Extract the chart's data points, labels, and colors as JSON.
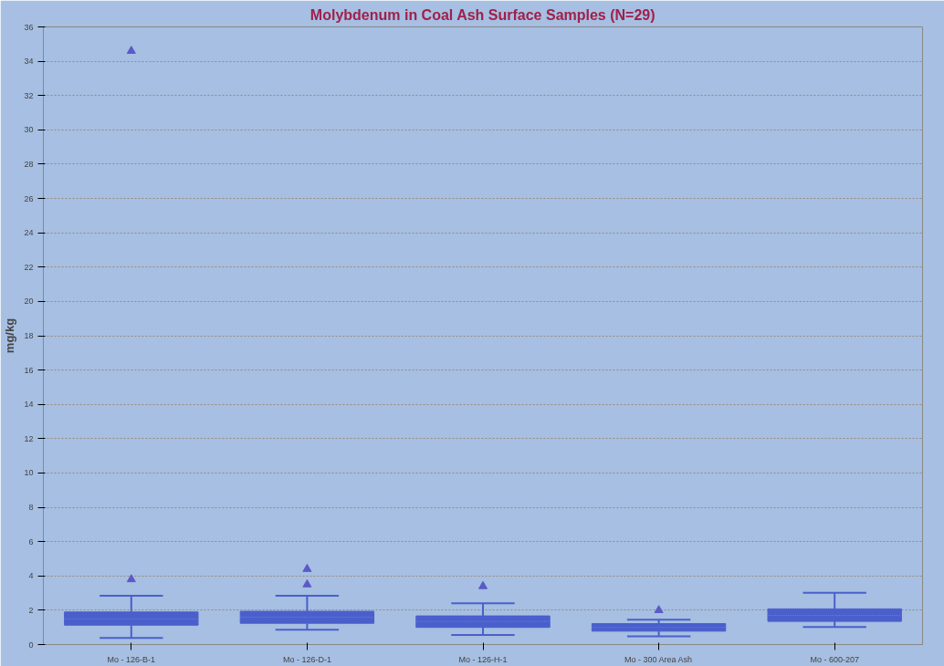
{
  "chart_data": {
    "type": "box",
    "title": "Molybdenum in Coal Ash Surface Samples (N=29)",
    "ylabel": "mg/kg",
    "categories": [
      "Mo - 126-B-1",
      "Mo - 126-D-1",
      "Mo - 126-H-1",
      "Mo - 300 Area Ash",
      "Mo - 600-207"
    ],
    "boxes": [
      {
        "low": 0.38,
        "q1": 1.13,
        "median": 1.5,
        "q3": 1.9,
        "high": 2.85,
        "outliers": [
          3.8,
          34.6
        ]
      },
      {
        "low": 0.86,
        "q1": 1.24,
        "median": 1.6,
        "q3": 1.94,
        "high": 2.85,
        "outliers": [
          3.5,
          4.4
        ]
      },
      {
        "low": 0.56,
        "q1": 1.0,
        "median": 1.35,
        "q3": 1.67,
        "high": 2.4,
        "outliers": [
          3.4
        ]
      },
      {
        "low": 0.48,
        "q1": 0.78,
        "median": 1.0,
        "q3": 1.22,
        "high": 1.45,
        "outliers": [
          2.0
        ]
      },
      {
        "low": 1.03,
        "q1": 1.35,
        "median": 1.7,
        "q3": 2.08,
        "high": 3.02
      }
    ],
    "color": "#4a5fcc",
    "marker": "triangle",
    "ylim": [
      0,
      36
    ],
    "yticks": [
      0,
      2,
      4,
      6,
      8,
      10,
      12,
      14,
      16,
      18,
      20,
      22,
      24,
      26,
      28,
      30,
      32,
      34,
      36
    ],
    "grid": "y"
  }
}
